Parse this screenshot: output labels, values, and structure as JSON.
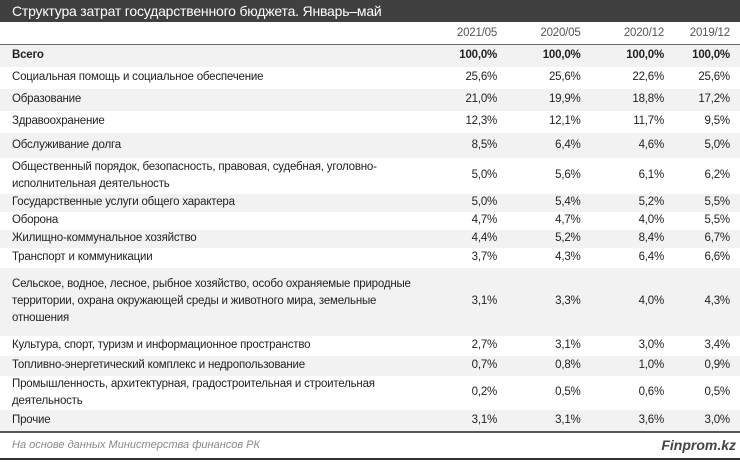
{
  "title": "Структура затрат государственного бюджета. Январь–май",
  "chart_data": {
    "type": "table",
    "title": "Структура затрат государственного бюджета. Январь–май",
    "columns": [
      "2021/05",
      "2020/05",
      "2020/12",
      "2019/12"
    ],
    "rows": [
      {
        "label": "Всего",
        "values": [
          "100,0%",
          "100,0%",
          "100,0%",
          "100,0%"
        ]
      },
      {
        "label": "Социальная помощь и социальное обеспечение",
        "values": [
          "25,6%",
          "25,6%",
          "22,6%",
          "25,6%"
        ]
      },
      {
        "label": "Образование",
        "values": [
          "21,0%",
          "19,9%",
          "18,8%",
          "17,2%"
        ]
      },
      {
        "label": "Здравоохранение",
        "values": [
          "12,3%",
          "12,1%",
          "11,7%",
          "9,5%"
        ]
      },
      {
        "label": "Обслуживание долга",
        "values": [
          "8,5%",
          "6,4%",
          "4,6%",
          "5,0%"
        ]
      },
      {
        "label": "Общественный порядок, безопасность, правовая, судебная, уголовно-исполнительная деятельность",
        "values": [
          "5,0%",
          "5,6%",
          "6,1%",
          "6,2%"
        ]
      },
      {
        "label": "Государственные услуги общего характера",
        "values": [
          "5,0%",
          "5,4%",
          "5,2%",
          "5,5%"
        ]
      },
      {
        "label": "Оборона",
        "values": [
          "4,7%",
          "4,7%",
          "4,0%",
          "5,5%"
        ]
      },
      {
        "label": "Жилищно-коммунальное хозяйство",
        "values": [
          "4,4%",
          "5,2%",
          "8,4%",
          "6,7%"
        ]
      },
      {
        "label": "Транспорт и коммуникации",
        "values": [
          "3,7%",
          "4,3%",
          "6,4%",
          "6,6%"
        ]
      },
      {
        "label": "Сельское, водное, лесное, рыбное хозяйство, особо охраняемые природные территории, охрана окружающей среды и животного мира, земельные отношения",
        "values": [
          "3,1%",
          "3,3%",
          "4,0%",
          "4,3%"
        ]
      },
      {
        "label": "Культура, спорт, туризм и информационное пространство",
        "values": [
          "2,7%",
          "3,1%",
          "3,0%",
          "3,4%"
        ]
      },
      {
        "label": "Топливно-энергетический комплекс и недропользование",
        "values": [
          "0,7%",
          "0,8%",
          "1,0%",
          "0,9%"
        ]
      },
      {
        "label": "Промышленность, архитектурная, градостроительная и строительная деятельность",
        "values": [
          "0,2%",
          "0,5%",
          "0,6%",
          "0,5%"
        ]
      },
      {
        "label": "Прочие",
        "values": [
          "3,1%",
          "3,1%",
          "3,6%",
          "3,0%"
        ]
      }
    ]
  },
  "footer": {
    "source": "На основе данных Министерства финансов РК",
    "brand": "Finprom.kz"
  }
}
